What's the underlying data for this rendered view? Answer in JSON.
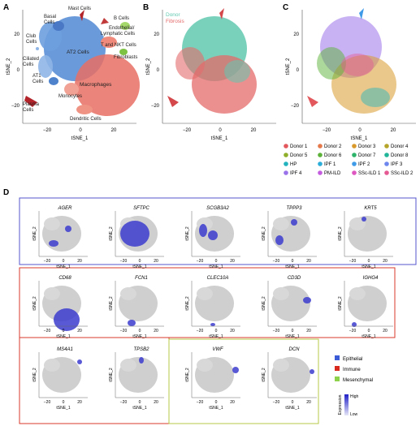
{
  "panel_letters": {
    "a": "A",
    "b": "B",
    "c": "C",
    "d": "D"
  },
  "axis": {
    "x_label": "tSNE_1",
    "y_label": "tSNE_2",
    "big_x_ticks": [
      "−20",
      "0",
      "20"
    ],
    "big_y_ticks": [
      "20",
      "0",
      "−20"
    ],
    "small_x_ticks": [
      "−20",
      "0",
      "20"
    ]
  },
  "panel_a_labels": {
    "mast": "Mast Cells",
    "basal": "Basal",
    "basal2": "Cells",
    "bcells": "B Cells",
    "endo1": "Endothelial/",
    "endo2": "Lymphatic Cells",
    "club": "Club",
    "club2": "Cells",
    "tnk": "T and NKT Cells",
    "at2": "AT2 Cells",
    "fibro": "Fibroblasts",
    "ciliated": "Ciliated",
    "ciliated2": "Cells",
    "at1": "AT1",
    "at1b": "Cells",
    "macro": "Macrophages",
    "mono": "Monocytes",
    "plasma": "Plasma",
    "plasma2": "Cells",
    "dendritic": "Dendritic Cells"
  },
  "panel_b_legend": {
    "donor": "Donor",
    "fibrosis": "Fibrosis"
  },
  "panel_c_legend": [
    {
      "label": "Donor 1",
      "color": "#e2585c"
    },
    {
      "label": "Donor 2",
      "color": "#e5794a"
    },
    {
      "label": "Donor 3",
      "color": "#d99a2b"
    },
    {
      "label": "Donor 4",
      "color": "#b5a52a"
    },
    {
      "label": "Donor 5",
      "color": "#8fae2a"
    },
    {
      "label": "Donor 6",
      "color": "#5cb238"
    },
    {
      "label": "Donor 7",
      "color": "#2fb46b"
    },
    {
      "label": "Donor 8",
      "color": "#22b59a"
    },
    {
      "label": "HP",
      "color": "#22b3be"
    },
    {
      "label": "IPF 1",
      "color": "#2aaed9"
    },
    {
      "label": "IPF 2",
      "color": "#3f9be8"
    },
    {
      "label": "IPF 3",
      "color": "#6d87ee"
    },
    {
      "label": "IPF 4",
      "color": "#9a72ea"
    },
    {
      "label": "PM-ILD",
      "color": "#c45cdf"
    },
    {
      "label": "SSc-ILD 1",
      "color": "#de56c0"
    },
    {
      "label": "SSc-ILD 2",
      "color": "#e65a94"
    }
  ],
  "colors": {
    "epithelial": "#5b8fd6",
    "immune": "#e86f63",
    "donor": "#62c9b0",
    "fibrosis": "#e46a6a",
    "grey": "#cfcfcf",
    "expr": "#3c3ccf",
    "epi_box": "#5555cc",
    "imm_box": "#d93a2b",
    "mes_box": "#b8c84a"
  },
  "genes": {
    "ager": "AGER",
    "sftpc": "SFTPC",
    "scgb3a2": "SCGB3A2",
    "tppp3": "TPPP3",
    "krt5": "KRT5",
    "cd68": "CD68",
    "fcn1": "FCN1",
    "clec10a": "CLEC10A",
    "cd3d": "CD3D",
    "ighg4": "IGHG4",
    "ms4a1": "MS4A1",
    "tpsb2": "TPSB2",
    "vwf": "VWF",
    "dcn": "DCN"
  },
  "category_legend": {
    "epithelial": "Epithelial",
    "immune": "Immune",
    "mesenchymal": "Mesenchymal"
  },
  "expression_legend": {
    "title": "Expression",
    "high": "High",
    "low": "Low"
  }
}
